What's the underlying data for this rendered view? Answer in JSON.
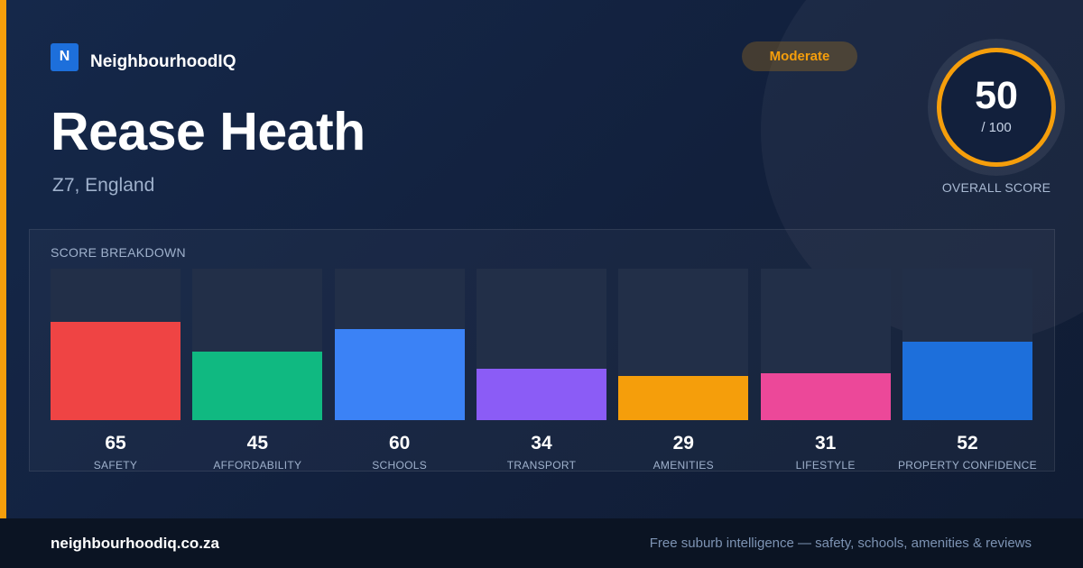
{
  "brand": {
    "logo_letter": "N",
    "name": "NeighbourhoodIQ"
  },
  "badge": {
    "label": "Moderate",
    "color": "#f59e0b"
  },
  "area": {
    "name": "Rease Heath",
    "location": "Z7, England"
  },
  "overall": {
    "score": "50",
    "max": "/ 100",
    "label": "OVERALL SCORE"
  },
  "breakdown": {
    "title": "SCORE BREAKDOWN",
    "max": 100
  },
  "chart_data": {
    "type": "bar",
    "title": "SCORE BREAKDOWN",
    "categories": [
      "SAFETY",
      "AFFORDABILITY",
      "SCHOOLS",
      "TRANSPORT",
      "AMENITIES",
      "LIFESTYLE",
      "PROPERTY CONFIDENCE"
    ],
    "values": [
      65,
      45,
      60,
      34,
      29,
      31,
      52
    ],
    "colors": [
      "#ef4444",
      "#10b981",
      "#3b82f6",
      "#8b5cf6",
      "#f59e0b",
      "#ec4899",
      "#1d6fdb"
    ],
    "ylim": [
      0,
      100
    ],
    "grid": false
  },
  "footer": {
    "url": "neighbourhoodiq.co.za",
    "tagline": "Free suburb intelligence — safety, schools, amenities & reviews"
  }
}
